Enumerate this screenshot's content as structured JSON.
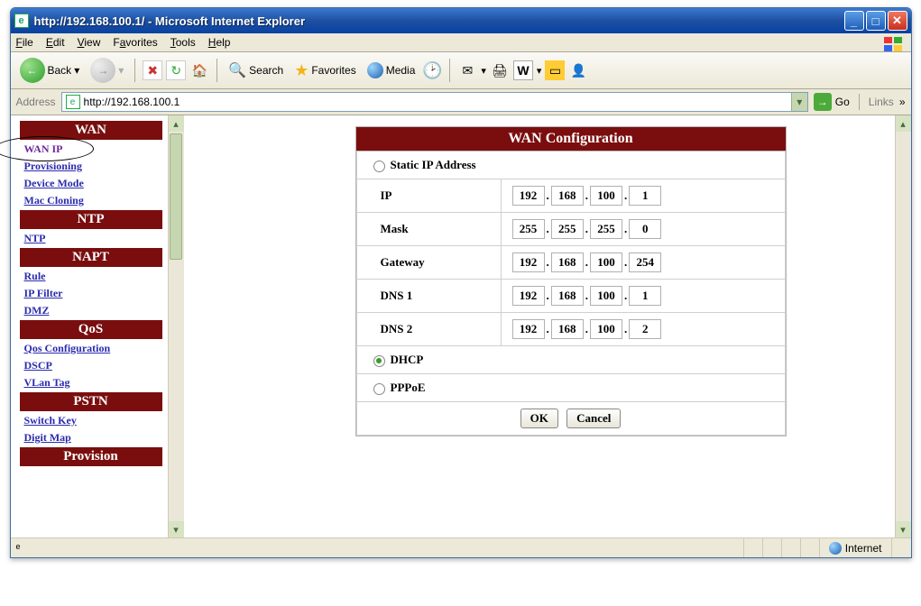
{
  "window": {
    "title": "http://192.168.100.1/ - Microsoft Internet Explorer"
  },
  "menubar": {
    "file": "File",
    "edit": "Edit",
    "view": "View",
    "favorites": "Favorites",
    "tools": "Tools",
    "help": "Help"
  },
  "toolbar": {
    "back": "Back",
    "search": "Search",
    "favorites": "Favorites",
    "media": "Media"
  },
  "addressbar": {
    "label": "Address",
    "url": "http://192.168.100.1",
    "go": "Go",
    "links": "Links"
  },
  "sidebar": {
    "sections": [
      {
        "header": "WAN",
        "links": [
          {
            "text": "WAN IP",
            "visited": true,
            "circled": true
          },
          {
            "text": "Provisioning"
          },
          {
            "text": "Device Mode"
          },
          {
            "text": "Mac Cloning"
          }
        ]
      },
      {
        "header": "NTP",
        "links": [
          {
            "text": "NTP"
          }
        ]
      },
      {
        "header": "NAPT",
        "links": [
          {
            "text": "Rule"
          },
          {
            "text": "IP Filter"
          },
          {
            "text": "DMZ"
          }
        ]
      },
      {
        "header": "QoS",
        "links": [
          {
            "text": "Qos Configuration"
          },
          {
            "text": "DSCP"
          },
          {
            "text": "VLan Tag"
          }
        ]
      },
      {
        "header": "PSTN",
        "links": [
          {
            "text": "Switch Key"
          },
          {
            "text": "Digit Map"
          }
        ]
      },
      {
        "header": "Provision",
        "links": []
      }
    ]
  },
  "panel": {
    "title": "WAN Configuration",
    "options": {
      "static": "Static IP Address",
      "dhcp": "DHCP",
      "pppoe": "PPPoE",
      "selected": "dhcp"
    },
    "rows": {
      "ip": {
        "label": "IP",
        "octets": [
          "192",
          "168",
          "100",
          "1"
        ]
      },
      "mask": {
        "label": "Mask",
        "octets": [
          "255",
          "255",
          "255",
          "0"
        ]
      },
      "gateway": {
        "label": "Gateway",
        "octets": [
          "192",
          "168",
          "100",
          "254"
        ]
      },
      "dns1": {
        "label": "DNS 1",
        "octets": [
          "192",
          "168",
          "100",
          "1"
        ]
      },
      "dns2": {
        "label": "DNS 2",
        "octets": [
          "192",
          "168",
          "100",
          "2"
        ]
      }
    },
    "buttons": {
      "ok": "OK",
      "cancel": "Cancel"
    }
  },
  "statusbar": {
    "zone": "Internet"
  },
  "colors": {
    "brand_bg": "#7a0e0e",
    "brand_fg": "#ffffff",
    "link": "#2a2aaf",
    "visited": "#6d2a9f",
    "chrome": "#ece9d8",
    "title_gradient_top": "#3c7ad1",
    "title_gradient_bot": "#0842a3"
  }
}
